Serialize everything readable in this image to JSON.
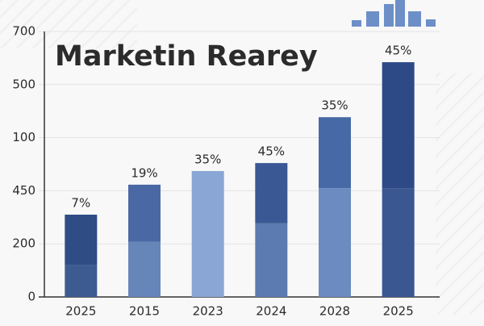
{
  "chart_data": {
    "type": "stacked_bar",
    "title": "Marketin Rearey",
    "categories": [
      "2025",
      "2015",
      "2023",
      "2024",
      "2028",
      "2025"
    ],
    "bar_labels": [
      "7%",
      "19%",
      "35%",
      "45%",
      "35%",
      "45%"
    ],
    "series": [
      {
        "colors": [
          "#3e5b91",
          "#6686ba",
          "#8aa6d4",
          "#5b7bb1",
          "#6b8bc1",
          "#3b5791"
        ],
        "values": [
          85,
          145,
          332,
          194,
          287,
          287
        ]
      },
      {
        "colors": [
          "#2f4c85",
          "#4a69a4",
          "#8aa6d4",
          "#3a5893",
          "#4769a6",
          "#2e4a86"
        ],
        "values": [
          132,
          151,
          null,
          159,
          187,
          332
        ]
      }
    ],
    "ylim": [
      0,
      700
    ],
    "yticks": [
      0,
      {
        "value": 140,
        "label": "200"
      },
      {
        "value": 280,
        "label": "450"
      },
      {
        "value": 420,
        "label": "100"
      },
      {
        "value": 560,
        "label": "500"
      },
      700
    ],
    "grid": true
  }
}
